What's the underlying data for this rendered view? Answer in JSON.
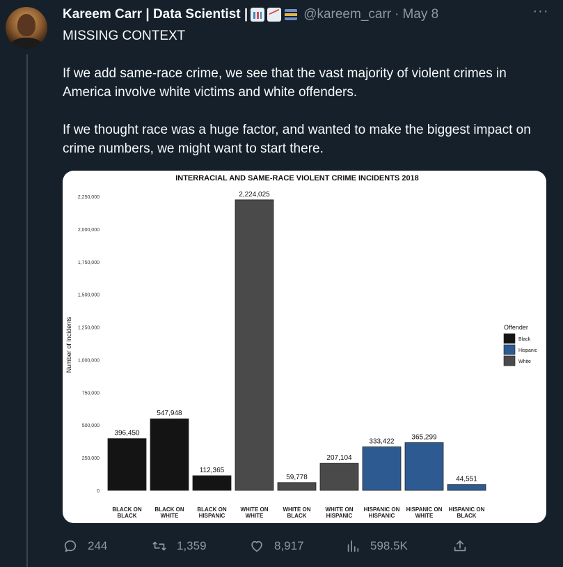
{
  "tweet": {
    "author_name": "Kareem Carr | Data Scientist |",
    "author_emojis": [
      "bar-chart-emoji",
      "chart-increasing-emoji",
      "books-emoji"
    ],
    "handle": "@kareem_carr",
    "separator": "·",
    "date": "May 8",
    "more": "···",
    "text_lines": [
      "MISSING CONTEXT",
      "If we add same-race crime, we see that the vast majority of violent crimes in America involve white victims and white offenders.",
      "If we thought race was a huge factor, and wanted to make the biggest impact on crime numbers, we might want to start there."
    ]
  },
  "actions": {
    "replies": "244",
    "retweets": "1,359",
    "likes": "8,917",
    "views": "598.5K"
  },
  "colors": {
    "background": "#15202b",
    "text": "#f7f9f9",
    "muted": "#8b98a5",
    "black_bar": "#141414",
    "hispanic_bar": "#2e5a92",
    "white_bar": "#4a4a4a"
  },
  "chart_data": {
    "type": "bar",
    "title": "INTERRACIAL AND SAME-RACE VIOLENT CRIME INCIDENTS 2018",
    "ylabel": "Number of Incidents",
    "xlabel": "",
    "ylim": [
      0,
      2250000
    ],
    "yticks": [
      "0",
      "250,000",
      "500,000",
      "750,000",
      "1,000,000",
      "1,250,000",
      "1,500,000",
      "1,750,000",
      "2,000,000",
      "2,250,000"
    ],
    "ytick_values": [
      0,
      250000,
      500000,
      750000,
      1000000,
      1250000,
      1500000,
      1750000,
      2000000,
      2250000
    ],
    "categories": [
      [
        "BLACK ON",
        "BLACK"
      ],
      [
        "BLACK ON",
        "WHITE"
      ],
      [
        "BLACK ON",
        "HISPANIC"
      ],
      [
        "WHITE ON",
        "WHITE"
      ],
      [
        "WHITE ON",
        "BLACK"
      ],
      [
        "WHITE ON",
        "HISPANIC"
      ],
      [
        "HISPANIC ON",
        "HISPANIC"
      ],
      [
        "HISPANIC ON",
        "WHITE"
      ],
      [
        "HISPANIC ON",
        "BLACK"
      ]
    ],
    "values": [
      396450,
      547948,
      112365,
      2224025,
      59778,
      207104,
      333422,
      365299,
      44551
    ],
    "value_labels": [
      "396,450",
      "547,948",
      "112,365",
      "2,224,025",
      "59,778",
      "207,104",
      "333,422",
      "365,299",
      "44,551"
    ],
    "offender": [
      "Black",
      "Black",
      "Black",
      "White",
      "White",
      "White",
      "Hispanic",
      "Hispanic",
      "Hispanic"
    ],
    "legend": {
      "title": "Offender",
      "entries": [
        "Black",
        "Hispanic",
        "White"
      ],
      "placement": "right"
    },
    "grid": false
  }
}
